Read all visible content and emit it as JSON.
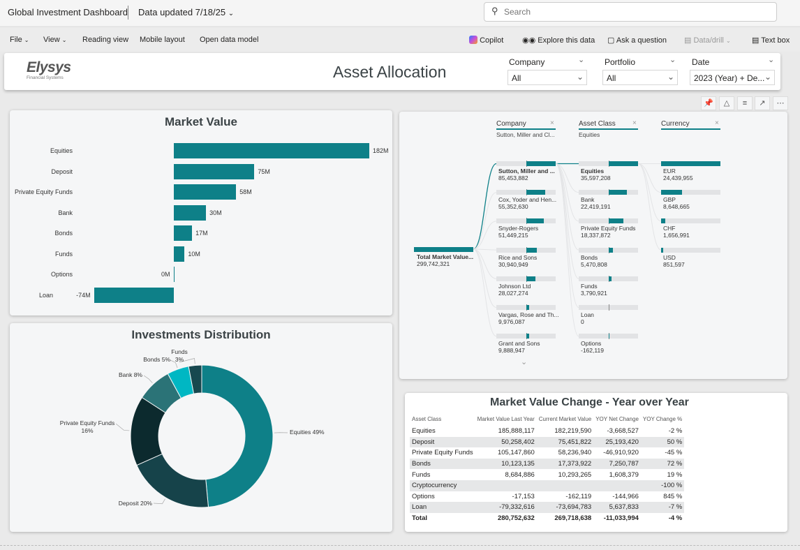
{
  "app": {
    "title": "Global Investment Dashboard",
    "updated": "Data updated 7/18/25",
    "search_placeholder": "Search"
  },
  "toolbar": {
    "file": "File",
    "view": "View",
    "reading": "Reading view",
    "mobile": "Mobile layout",
    "model": "Open data model",
    "copilot": "Copilot",
    "explore": "Explore this data",
    "ask": "Ask a question",
    "drill": "Data/drill",
    "textbox": "Text box"
  },
  "header": {
    "logo": "Elysys",
    "logo_sub": "Financial Systems",
    "title": "Asset Allocation",
    "slicers": [
      {
        "label": "Company",
        "value": "All"
      },
      {
        "label": "Portfolio",
        "value": "All"
      },
      {
        "label": "Date",
        "value": "2023 (Year) + De..."
      }
    ]
  },
  "colors": {
    "accent": "#0e8088"
  },
  "market_value": {
    "title": "Market Value",
    "categories": [
      "Equities",
      "Deposit",
      "Private Equity Funds",
      "Bank",
      "Bonds",
      "Funds",
      "Options",
      "Loan"
    ],
    "values": [
      182,
      75,
      58,
      30,
      17,
      10,
      0,
      -74
    ],
    "labels": [
      "182M",
      "75M",
      "58M",
      "30M",
      "17M",
      "10M",
      "0M",
      "-74M"
    ]
  },
  "distribution": {
    "title": "Investments Distribution",
    "slices": [
      {
        "name": "Equities",
        "pct": 49,
        "label": "Equities 49%",
        "color": "#0e8088"
      },
      {
        "name": "Deposit",
        "pct": 20,
        "label": "Deposit 20%",
        "color": "#16434a"
      },
      {
        "name": "Private Equity Funds",
        "pct": 16,
        "label": "Private Equity Funds 16%",
        "color": "#0c2a2e"
      },
      {
        "name": "Bank",
        "pct": 8,
        "label": "Bank 8%",
        "color": "#2b7377"
      },
      {
        "name": "Bonds",
        "pct": 5,
        "label": "Bonds 5%",
        "color": "#00b7c3"
      },
      {
        "name": "Funds",
        "pct": 3,
        "label": "Funds 3%",
        "color": "#17484f"
      }
    ]
  },
  "decomp": {
    "root": {
      "label": "Total Market Value...",
      "value": "299,742,321"
    },
    "levels": [
      {
        "header": "Company",
        "selected": "Sutton, Miller and Cl...",
        "nodes": [
          {
            "label": "Sutton, Miller and ...",
            "value": "85,453,882",
            "v": 85453882
          },
          {
            "label": "Cox, Yoder and Hen...",
            "value": "55,352,630",
            "v": 55352630
          },
          {
            "label": "Snyder-Rogers",
            "value": "51,449,215",
            "v": 51449215
          },
          {
            "label": "Rice and Sons",
            "value": "30,940,949",
            "v": 30940949
          },
          {
            "label": "Johnson Ltd",
            "value": "28,027,274",
            "v": 28027274
          },
          {
            "label": "Vargas, Rose and Th...",
            "value": "9,976,087",
            "v": 9976087
          },
          {
            "label": "Grant and Sons",
            "value": "9,888,947",
            "v": 9888947
          }
        ]
      },
      {
        "header": "Asset Class",
        "selected": "Equities",
        "nodes": [
          {
            "label": "Equities",
            "value": "35,597,208",
            "v": 35597208
          },
          {
            "label": "Bank",
            "value": "22,419,191",
            "v": 22419191
          },
          {
            "label": "Private Equity Funds",
            "value": "18,337,872",
            "v": 18337872
          },
          {
            "label": "Bonds",
            "value": "5,470,808",
            "v": 5470808
          },
          {
            "label": "Funds",
            "value": "3,790,921",
            "v": 3790921
          },
          {
            "label": "Loan",
            "value": "0",
            "v": 0
          },
          {
            "label": "Options",
            "value": "-162,119",
            "v": -162119
          }
        ]
      },
      {
        "header": "Currency",
        "selected": "",
        "nodes": [
          {
            "label": "EUR",
            "value": "24,439,955",
            "v": 24439955
          },
          {
            "label": "GBP",
            "value": "8,648,665",
            "v": 8648665
          },
          {
            "label": "CHF",
            "value": "1,656,991",
            "v": 1656991
          },
          {
            "label": "USD",
            "value": "851,597",
            "v": 851597
          }
        ]
      }
    ]
  },
  "yoy": {
    "title": "Market Value Change - Year over Year",
    "columns": [
      "Asset Class",
      "Market Value Last Year",
      "Current Market Value",
      "YOY Net Change",
      "YOY Change %"
    ],
    "rows": [
      [
        "Equities",
        "185,888,117",
        "182,219,590",
        "-3,668,527",
        "-2 %"
      ],
      [
        "Deposit",
        "50,258,402",
        "75,451,822",
        "25,193,420",
        "50 %"
      ],
      [
        "Private Equity Funds",
        "105,147,860",
        "58,236,940",
        "-46,910,920",
        "-45 %"
      ],
      [
        "Bonds",
        "10,123,135",
        "17,373,922",
        "7,250,787",
        "72 %"
      ],
      [
        "Funds",
        "8,684,886",
        "10,293,265",
        "1,608,379",
        "19 %"
      ],
      [
        "Cryptocurrency",
        "",
        "",
        "",
        "-100 %"
      ],
      [
        "Options",
        "-17,153",
        "-162,119",
        "-144,966",
        "845 %"
      ],
      [
        "Loan",
        "-79,332,616",
        "-73,694,783",
        "5,637,833",
        "-7 %"
      ]
    ],
    "total": [
      "Total",
      "280,752,632",
      "269,718,638",
      "-11,033,994",
      "-4 %"
    ]
  }
}
